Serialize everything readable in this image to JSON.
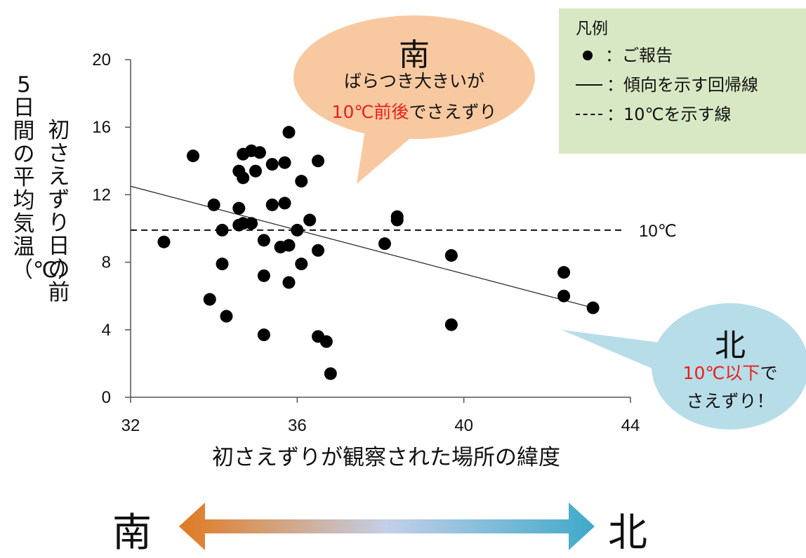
{
  "chart_data": {
    "type": "scatter",
    "xlabel": "初さえずりが観察された場所の緯度",
    "ylabel": "5日間の平均気温（℃）",
    "ylabel_first": "初さえずり日の前",
    "ylabel_second": "5日間の平均気温（℃）",
    "xlim": [
      32,
      44
    ],
    "ylim": [
      0,
      20
    ],
    "x_ticks": [
      "32",
      "36",
      "40",
      "44"
    ],
    "y_ticks": [
      "0",
      "4",
      "8",
      "12",
      "16",
      "20"
    ],
    "grid": false,
    "series": [
      {
        "name": "ご報告",
        "points": [
          [
            32.8,
            9.2
          ],
          [
            33.5,
            14.3
          ],
          [
            33.9,
            5.8
          ],
          [
            34.0,
            11.4
          ],
          [
            34.2,
            7.9
          ],
          [
            34.2,
            9.9
          ],
          [
            34.3,
            4.8
          ],
          [
            34.6,
            11.2
          ],
          [
            34.6,
            10.2
          ],
          [
            34.6,
            13.4
          ],
          [
            34.7,
            14.4
          ],
          [
            34.7,
            13.0
          ],
          [
            34.7,
            10.3
          ],
          [
            34.9,
            14.6
          ],
          [
            34.9,
            10.3
          ],
          [
            35.0,
            13.4
          ],
          [
            35.1,
            14.5
          ],
          [
            35.2,
            9.3
          ],
          [
            35.2,
            7.2
          ],
          [
            35.2,
            3.7
          ],
          [
            35.4,
            11.4
          ],
          [
            35.4,
            13.8
          ],
          [
            35.6,
            8.9
          ],
          [
            35.7,
            11.5
          ],
          [
            35.7,
            13.9
          ],
          [
            35.8,
            15.7
          ],
          [
            35.8,
            9.0
          ],
          [
            35.8,
            6.8
          ],
          [
            36.0,
            9.9
          ],
          [
            36.1,
            12.8
          ],
          [
            36.1,
            7.9
          ],
          [
            36.3,
            10.5
          ],
          [
            36.5,
            14.0
          ],
          [
            36.5,
            8.7
          ],
          [
            36.5,
            3.6
          ],
          [
            36.7,
            3.3
          ],
          [
            36.8,
            1.4
          ],
          [
            38.1,
            9.1
          ],
          [
            38.4,
            10.5
          ],
          [
            38.4,
            10.7
          ],
          [
            39.7,
            8.4
          ],
          [
            39.7,
            4.3
          ],
          [
            42.4,
            7.4
          ],
          [
            42.4,
            6.0
          ],
          [
            43.1,
            5.3
          ]
        ]
      }
    ],
    "regression_line": {
      "name": "傾向を示す回帰線",
      "x": [
        32,
        43.1
      ],
      "y": [
        12.5,
        5.3
      ]
    },
    "reference_line": {
      "name": "10℃を示す線",
      "y": 9.9,
      "label": "10℃"
    }
  },
  "legend": {
    "title": "凡例",
    "dot_label": "：ご報告",
    "solid_label": "：傾向を示す回帰線",
    "dash_label": "：10℃を示す線"
  },
  "callouts": {
    "south": {
      "title": "南",
      "line1": "ばらつき大きいが",
      "line2_red": "10℃前後",
      "line2_rest": "でさえずり"
    },
    "north": {
      "title": "北",
      "line1_red": "10℃以下",
      "line1_rest": "で",
      "line2": "さえずり！"
    }
  },
  "direction_bar": {
    "left": "南",
    "right": "北"
  },
  "colors": {
    "south_bubble": "#f8c9a0",
    "north_bubble": "#b7dde8",
    "legend_bg": "#d9e8c4",
    "highlight_red": "#e8201a",
    "arrow_left": "#e07a20",
    "arrow_mid": "#c4cfe8",
    "arrow_right": "#3fa9c9"
  }
}
